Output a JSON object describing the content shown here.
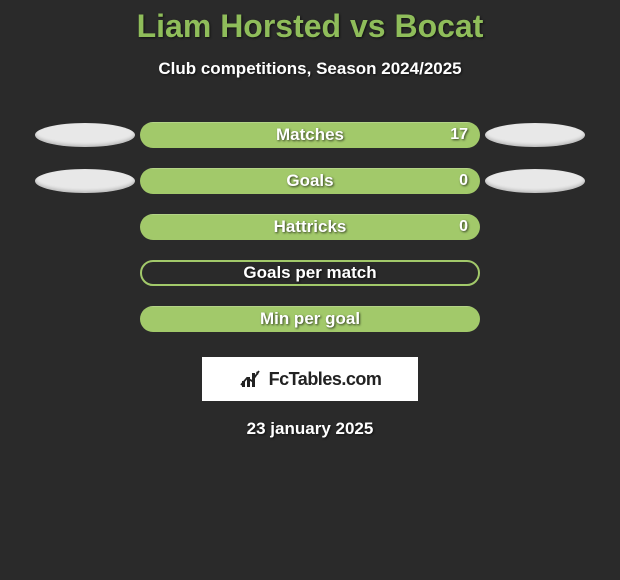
{
  "title": "Liam Horsted vs Bocat",
  "subtitle": "Club competitions, Season 2024/2025",
  "colors": {
    "background": "#2a2a2a",
    "accent": "#8fbd5a",
    "bar_fill": "#a2c96a",
    "text": "#ffffff",
    "ellipse": "#e8e8e8"
  },
  "stats": [
    {
      "label": "Matches",
      "right_value": "17",
      "fill_pct": 100,
      "left_ellipse": true,
      "right_ellipse": true
    },
    {
      "label": "Goals",
      "right_value": "0",
      "fill_pct": 100,
      "left_ellipse": true,
      "right_ellipse": true
    },
    {
      "label": "Hattricks",
      "right_value": "0",
      "fill_pct": 100,
      "left_ellipse": false,
      "right_ellipse": false
    },
    {
      "label": "Goals per match",
      "right_value": "",
      "fill_pct": 0,
      "left_ellipse": false,
      "right_ellipse": false
    },
    {
      "label": "Min per goal",
      "right_value": "",
      "fill_pct": 100,
      "left_ellipse": false,
      "right_ellipse": false
    }
  ],
  "logo": {
    "text": "FcTables.com"
  },
  "date": "23 january 2025"
}
